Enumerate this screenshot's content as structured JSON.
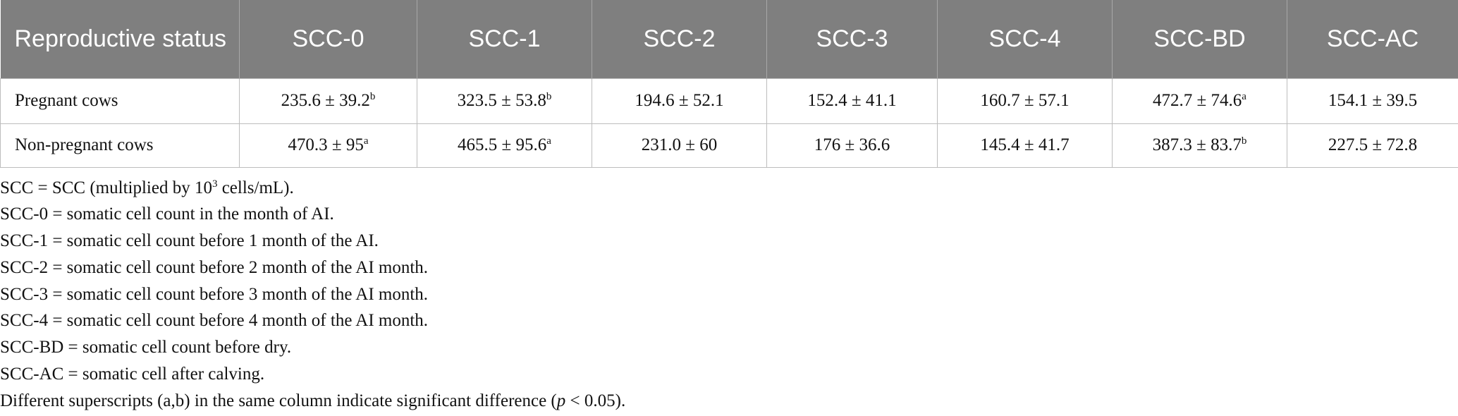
{
  "table": {
    "header": [
      "Reproductive status",
      "SCC-0",
      "SCC-1",
      "SCC-2",
      "SCC-3",
      "SCC-4",
      "SCC-BD",
      "SCC-AC"
    ],
    "rows": [
      [
        "Pregnant cows",
        {
          "text": "235.6 ± 39.2",
          "sup": "b"
        },
        {
          "text": "323.5 ± 53.8",
          "sup": "b"
        },
        "194.6 ± 52.1",
        "152.4 ± 41.1",
        "160.7 ± 57.1",
        {
          "text": "472.7 ± 74.6",
          "sup": "a"
        },
        "154.1 ± 39.5"
      ],
      [
        "Non-pregnant cows",
        {
          "text": "470.3 ± 95",
          "sup": "a"
        },
        {
          "text": "465.5 ± 95.6",
          "sup": "a"
        },
        "231.0 ± 60",
        "176 ± 36.6",
        "145.4 ± 41.7",
        {
          "text": "387.3 ± 83.7",
          "sup": "b"
        },
        "227.5 ± 72.8"
      ]
    ]
  },
  "footnotes": [
    [
      "SCC = SCC (multiplied by 10",
      {
        "text": "3",
        "style": "sup"
      },
      " cells/mL)."
    ],
    [
      "SCC-0 = somatic cell count in the month of AI."
    ],
    [
      "SCC-1 = somatic cell count before 1 month of the AI."
    ],
    [
      "SCC-2 = somatic cell count before 2 month of the AI month."
    ],
    [
      "SCC-3 = somatic cell count before 3 month of the AI month."
    ],
    [
      "SCC-4 = somatic cell count before 4 month of the AI month."
    ],
    [
      "SCC-BD = somatic cell count before dry."
    ],
    [
      "SCC-AC = somatic cell after calving."
    ],
    [
      "Different superscripts (a,b) in the same column indicate significant difference (",
      {
        "text": "p",
        "style": "italic"
      },
      " < 0.05)."
    ]
  ]
}
